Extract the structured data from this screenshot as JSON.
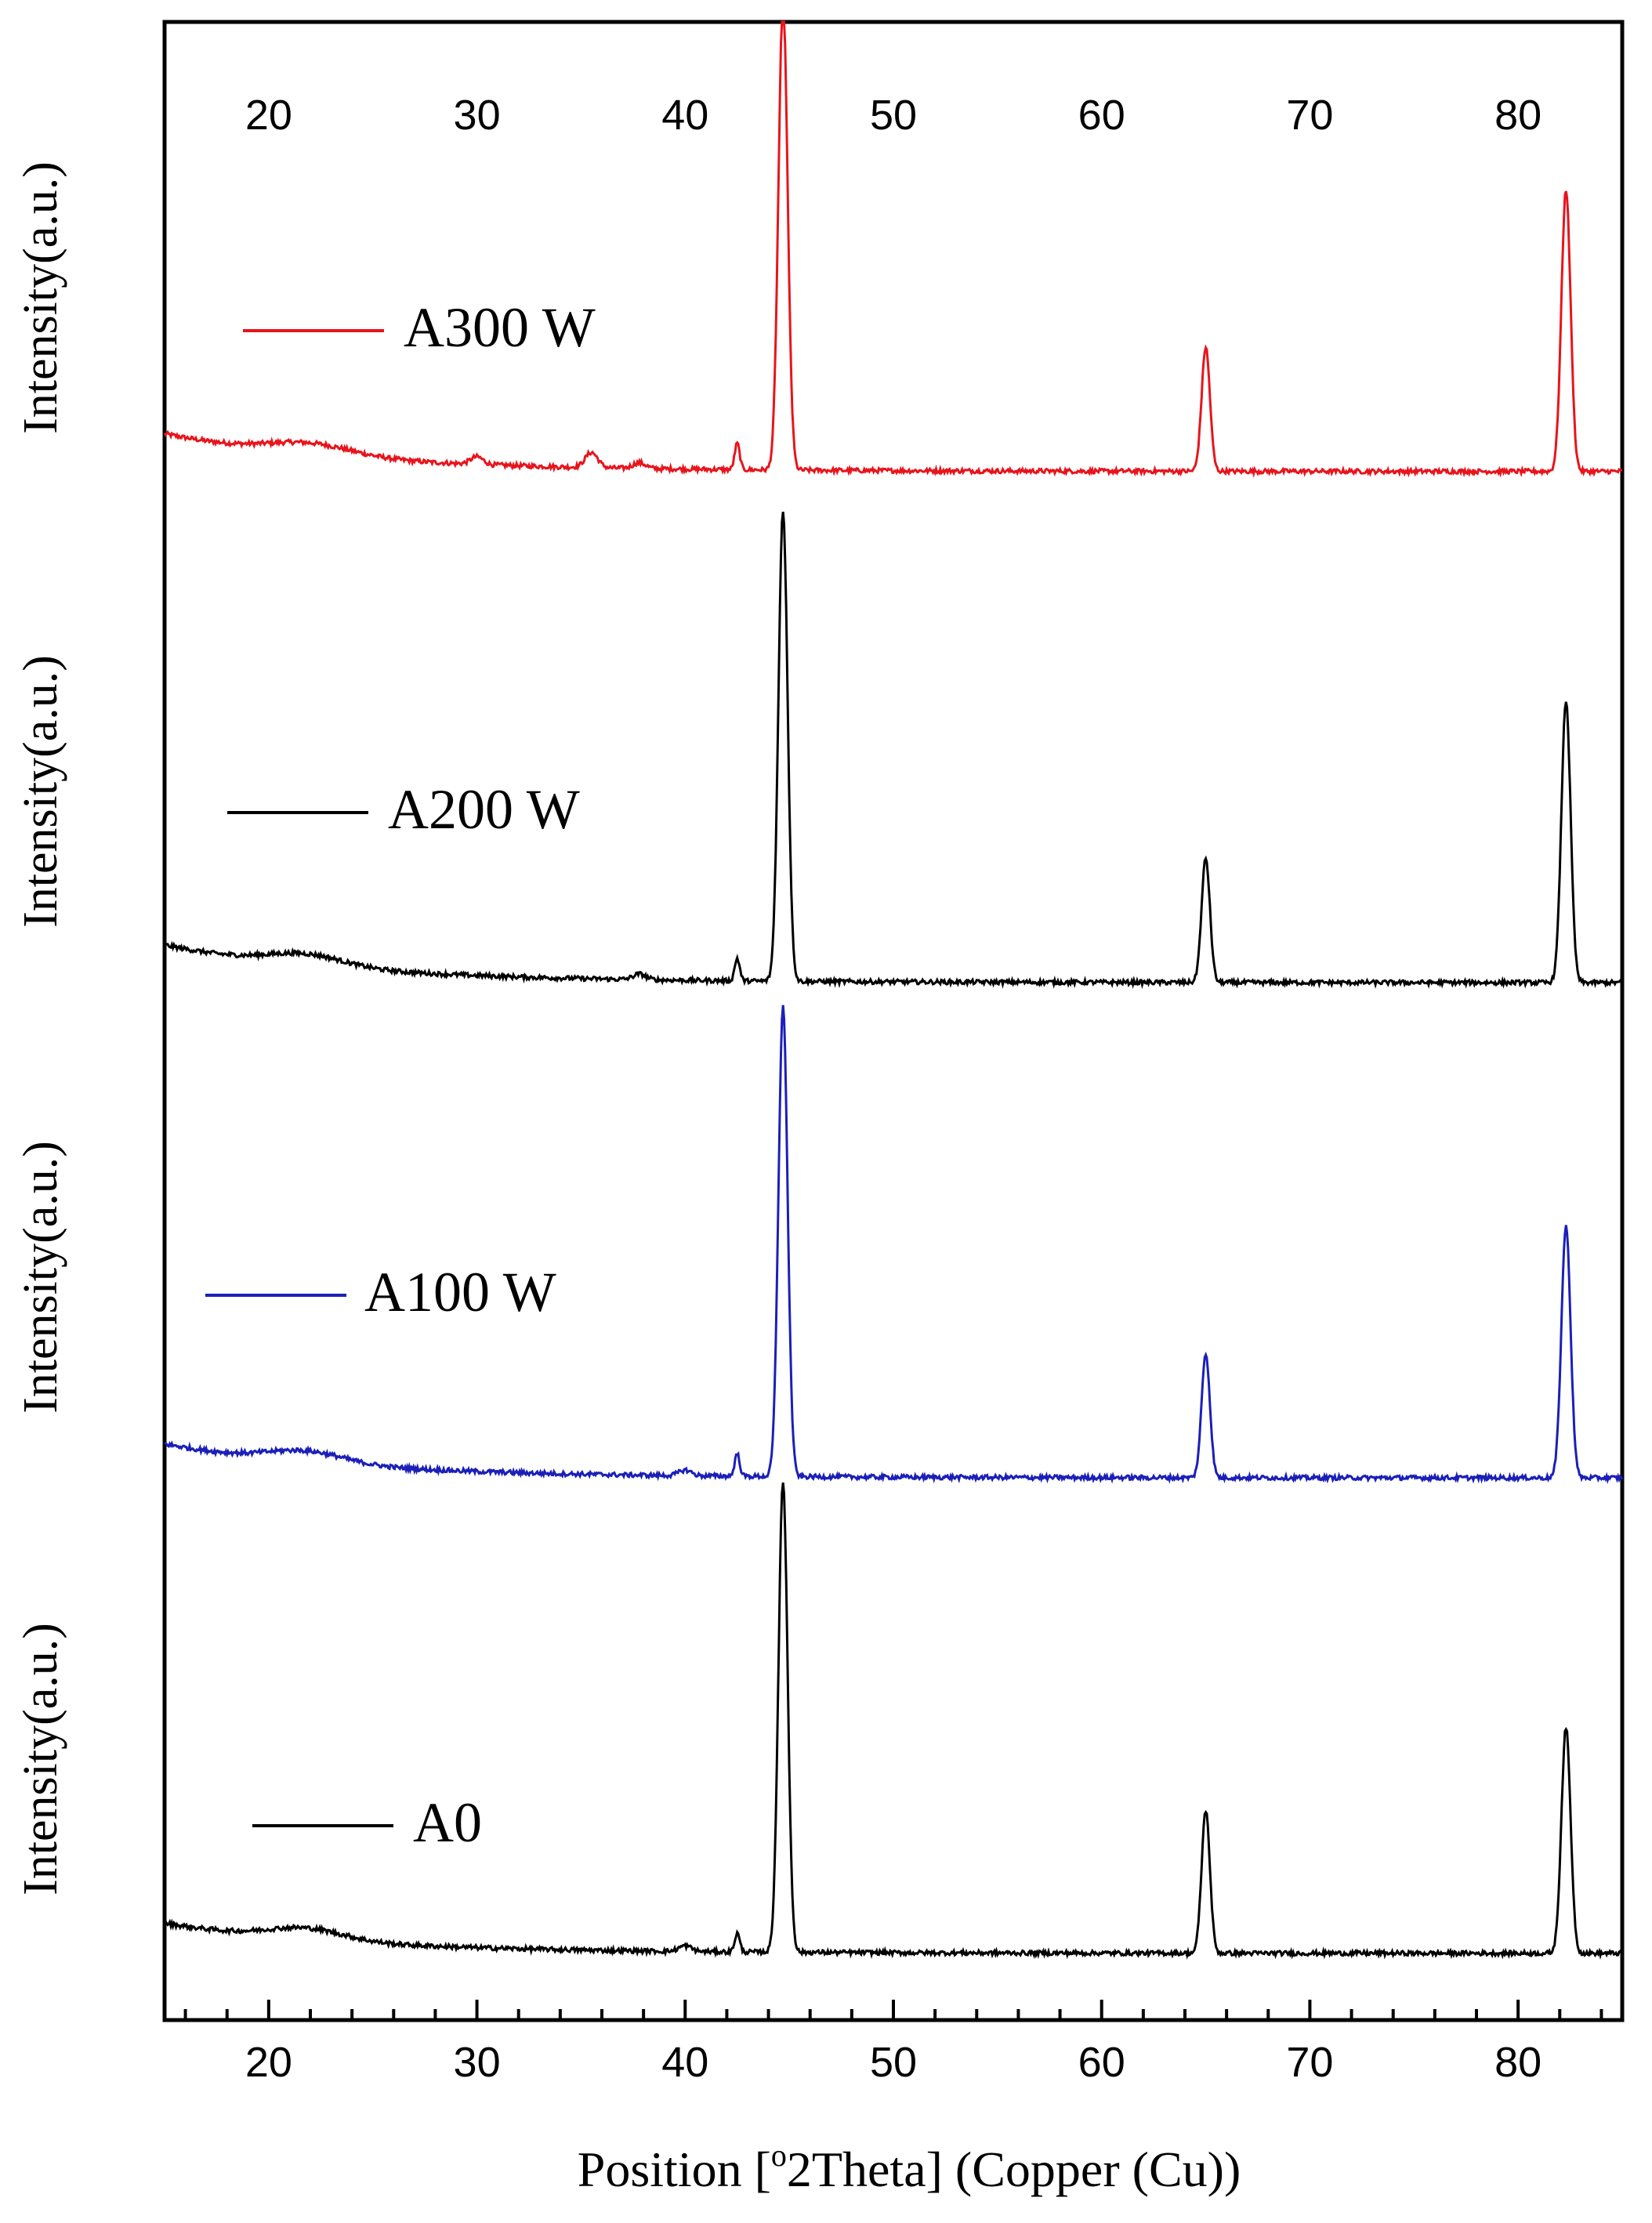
{
  "chart_data": {
    "type": "line",
    "title": "",
    "xlabel": "Position [°2Theta] (Copper (Cu))",
    "xlabel_parts": {
      "before": "Position [",
      "sup": "o",
      "after": "2Theta] (Copper (Cu))"
    },
    "ylabel": "Intensity(a.u.)",
    "xlim": [
      15,
      85
    ],
    "xticks": [
      20,
      30,
      40,
      50,
      60,
      70,
      80
    ],
    "top_axis_ticks": true,
    "grid": false,
    "layout": "stacked panels, top to bottom",
    "series": [
      {
        "name": "A300 W",
        "color": "#e8141c",
        "baseline": 0.08,
        "start_level": 0.18,
        "peaks": [
          {
            "x": 22.0,
            "h": 0.03,
            "w": 2.0
          },
          {
            "x": 30.0,
            "h": 0.02,
            "w": 0.3
          },
          {
            "x": 35.5,
            "h": 0.04,
            "w": 0.3
          },
          {
            "x": 37.8,
            "h": 0.015,
            "w": 0.3
          },
          {
            "x": 42.5,
            "h": 0.07,
            "w": 0.12
          },
          {
            "x": 44.7,
            "h": 1.25,
            "w": 0.22
          },
          {
            "x": 65.0,
            "h": 0.33,
            "w": 0.2
          },
          {
            "x": 82.3,
            "h": 0.75,
            "w": 0.22
          }
        ]
      },
      {
        "name": "A200 W",
        "color": "#000000",
        "baseline": 0.05,
        "start_level": 0.15,
        "peaks": [
          {
            "x": 21.8,
            "h": 0.03,
            "w": 1.8
          },
          {
            "x": 37.8,
            "h": 0.015,
            "w": 0.3
          },
          {
            "x": 42.5,
            "h": 0.06,
            "w": 0.12
          },
          {
            "x": 44.7,
            "h": 1.25,
            "w": 0.22
          },
          {
            "x": 65.0,
            "h": 0.33,
            "w": 0.2
          },
          {
            "x": 82.3,
            "h": 0.75,
            "w": 0.22
          }
        ]
      },
      {
        "name": "A100 W",
        "color": "#1b1fb8",
        "baseline": 0.05,
        "start_level": 0.14,
        "peaks": [
          {
            "x": 21.8,
            "h": 0.03,
            "w": 1.8
          },
          {
            "x": 40.0,
            "h": 0.015,
            "w": 0.3
          },
          {
            "x": 42.5,
            "h": 0.06,
            "w": 0.12
          },
          {
            "x": 44.7,
            "h": 1.25,
            "w": 0.22
          },
          {
            "x": 65.0,
            "h": 0.33,
            "w": 0.2
          },
          {
            "x": 82.3,
            "h": 0.67,
            "w": 0.22
          }
        ]
      },
      {
        "name": "A0",
        "color": "#000000",
        "baseline": 0.04,
        "start_level": 0.12,
        "peaks": [
          {
            "x": 21.8,
            "h": 0.03,
            "w": 1.8
          },
          {
            "x": 40.0,
            "h": 0.015,
            "w": 0.3
          },
          {
            "x": 42.5,
            "h": 0.05,
            "w": 0.12
          },
          {
            "x": 44.7,
            "h": 1.25,
            "w": 0.22
          },
          {
            "x": 65.0,
            "h": 0.38,
            "w": 0.2
          },
          {
            "x": 82.3,
            "h": 0.6,
            "w": 0.22
          }
        ]
      }
    ]
  }
}
